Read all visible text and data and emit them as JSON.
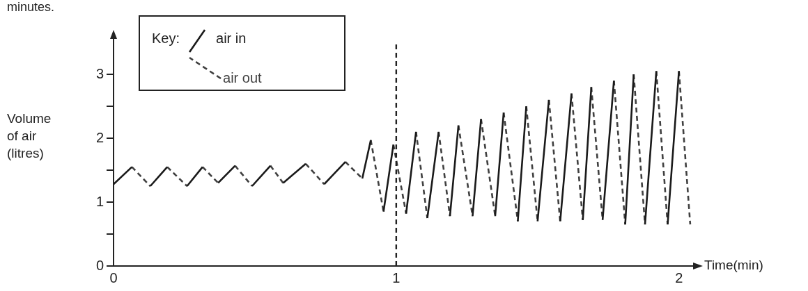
{
  "chart_data": {
    "type": "line",
    "xlabel": "Time(min)",
    "ylabel": "Volume\nof air\n(litres)",
    "legend_title": "Key:",
    "legend": "top left",
    "grid": false,
    "marker": "none",
    "annotations": [
      "minutes."
    ],
    "xlim": [
      0,
      2.05
    ],
    "xticks": [
      0,
      1,
      2
    ],
    "ylim": [
      0,
      3.5
    ],
    "yticks": [
      0,
      {
        "value": 0.5,
        "label": null
      },
      1,
      {
        "value": 1.5,
        "label": null
      },
      2,
      {
        "value": 2.5,
        "label": null
      },
      3
    ],
    "ref_lines": [
      {
        "axis": "x",
        "value": 1,
        "color": "#222222",
        "line_style": "dashed"
      }
    ],
    "series": [
      {
        "name": "air in",
        "color": "#1a1a1a",
        "line_style": "solid",
        "x": [
          0,
          0.065,
          null,
          0.13,
          0.19,
          null,
          0.26,
          0.315,
          null,
          0.37,
          0.43,
          null,
          0.49,
          0.555,
          null,
          0.6,
          0.68,
          null,
          0.745,
          0.82,
          null,
          0.88,
          0.91,
          null,
          0.955,
          0.99,
          null,
          1.035,
          1.07,
          null,
          1.11,
          1.15,
          null,
          1.19,
          1.22,
          null,
          1.27,
          1.3,
          null,
          1.35,
          1.38,
          null,
          1.43,
          1.46,
          null,
          1.5,
          1.54,
          null,
          1.58,
          1.62,
          null,
          1.66,
          1.69,
          null,
          1.73,
          1.77,
          null,
          1.81,
          1.84,
          null,
          1.88,
          1.92,
          null,
          1.96,
          2.0
        ],
        "values": [
          1.28,
          1.55,
          null,
          1.25,
          1.55,
          null,
          1.25,
          1.55,
          null,
          1.3,
          1.57,
          null,
          1.25,
          1.57,
          null,
          1.3,
          1.6,
          null,
          1.28,
          1.63,
          null,
          1.37,
          1.97,
          null,
          0.85,
          1.9,
          null,
          0.82,
          2.1,
          null,
          0.75,
          2.1,
          null,
          0.78,
          2.2,
          null,
          0.78,
          2.3,
          null,
          0.78,
          2.4,
          null,
          0.7,
          2.5,
          null,
          0.7,
          2.6,
          null,
          0.7,
          2.7,
          null,
          0.72,
          2.8,
          null,
          0.72,
          2.9,
          null,
          0.65,
          3.0,
          null,
          0.65,
          3.05,
          null,
          0.65,
          3.05
        ]
      },
      {
        "name": "air out",
        "color": "#404040",
        "line_style": "dashed",
        "x": [
          0.065,
          0.13,
          null,
          0.19,
          0.26,
          null,
          0.315,
          0.37,
          null,
          0.43,
          0.49,
          null,
          0.555,
          0.6,
          null,
          0.68,
          0.745,
          null,
          0.82,
          0.88,
          null,
          0.91,
          0.955,
          null,
          0.99,
          1.035,
          null,
          1.07,
          1.11,
          null,
          1.15,
          1.19,
          null,
          1.22,
          1.27,
          null,
          1.3,
          1.35,
          null,
          1.38,
          1.43,
          null,
          1.46,
          1.5,
          null,
          1.54,
          1.58,
          null,
          1.62,
          1.66,
          null,
          1.69,
          1.73,
          null,
          1.77,
          1.81,
          null,
          1.84,
          1.88,
          null,
          1.92,
          1.96,
          null,
          2.0,
          2.04
        ],
        "values": [
          1.55,
          1.25,
          null,
          1.55,
          1.25,
          null,
          1.55,
          1.3,
          null,
          1.57,
          1.25,
          null,
          1.57,
          1.3,
          null,
          1.6,
          1.28,
          null,
          1.63,
          1.37,
          null,
          1.97,
          0.85,
          null,
          1.9,
          0.82,
          null,
          2.1,
          0.75,
          null,
          2.1,
          0.78,
          null,
          2.2,
          0.78,
          null,
          2.3,
          0.78,
          null,
          2.4,
          0.7,
          null,
          2.5,
          0.7,
          null,
          2.6,
          0.7,
          null,
          2.7,
          0.72,
          null,
          2.8,
          0.72,
          null,
          2.9,
          0.65,
          null,
          3.0,
          0.65,
          null,
          3.05,
          0.65,
          null,
          3.05,
          0.65
        ]
      }
    ]
  }
}
